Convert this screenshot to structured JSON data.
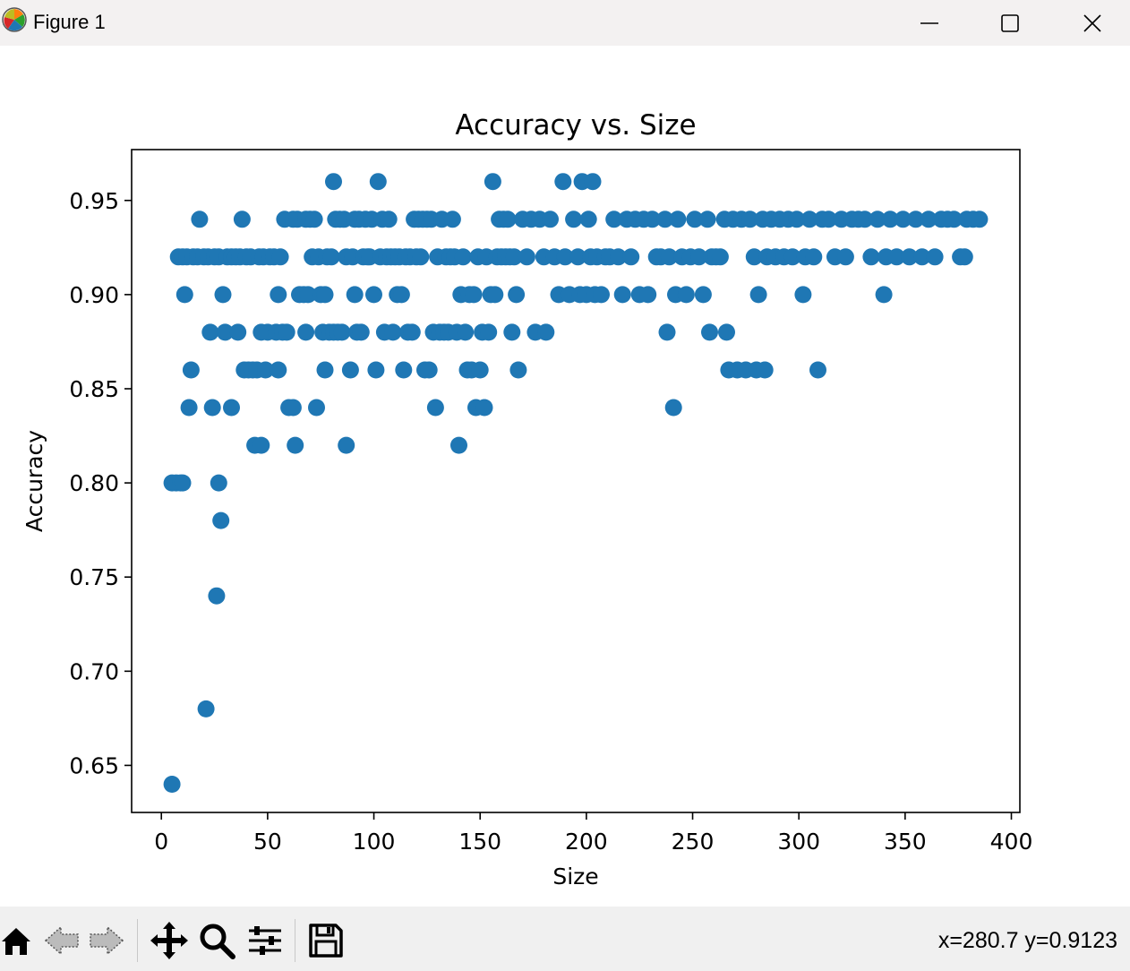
{
  "window": {
    "title": "Figure 1",
    "icon": "matplotlib-logo-icon",
    "controls": [
      "minimize-icon",
      "maximize-icon",
      "close-icon"
    ]
  },
  "toolbar": {
    "buttons": [
      "home-icon",
      "back-arrow-icon",
      "forward-arrow-icon",
      "pan-move-icon",
      "zoom-magnifier-icon",
      "configure-subplots-icon",
      "save-disk-icon"
    ],
    "coord_readout": "x=280.7 y=0.9123"
  },
  "chart_data": {
    "type": "scatter",
    "title": "Accuracy vs. Size",
    "xlabel": "Size",
    "ylabel": "Accuracy",
    "xlim": [
      -14,
      404
    ],
    "ylim": [
      0.625,
      0.977
    ],
    "xticks": [
      0,
      50,
      100,
      150,
      200,
      250,
      300,
      350,
      400
    ],
    "yticks": [
      0.65,
      0.7,
      0.75,
      0.8,
      0.85,
      0.9,
      0.95
    ],
    "ytick_labels": [
      "0.65",
      "0.70",
      "0.75",
      "0.80",
      "0.85",
      "0.90",
      "0.95"
    ],
    "grid": false,
    "marker_color": "#1f77b4",
    "points": [
      [
        5,
        0.64
      ],
      [
        5,
        0.8
      ],
      [
        7,
        0.8
      ],
      [
        9,
        0.8
      ],
      [
        10,
        0.8
      ],
      [
        8,
        0.92
      ],
      [
        10,
        0.92
      ],
      [
        12,
        0.92
      ],
      [
        11,
        0.9
      ],
      [
        13,
        0.84
      ],
      [
        14,
        0.86
      ],
      [
        15,
        0.92
      ],
      [
        17,
        0.92
      ],
      [
        18,
        0.94
      ],
      [
        20,
        0.92
      ],
      [
        21,
        0.68
      ],
      [
        22,
        0.92
      ],
      [
        23,
        0.88
      ],
      [
        24,
        0.84
      ],
      [
        25,
        0.92
      ],
      [
        26,
        0.74
      ],
      [
        27,
        0.8
      ],
      [
        28,
        0.78
      ],
      [
        27,
        0.92
      ],
      [
        29,
        0.9
      ],
      [
        30,
        0.88
      ],
      [
        31,
        0.92
      ],
      [
        33,
        0.84
      ],
      [
        33,
        0.92
      ],
      [
        35,
        0.92
      ],
      [
        36,
        0.88
      ],
      [
        37,
        0.92
      ],
      [
        38,
        0.94
      ],
      [
        39,
        0.86
      ],
      [
        40,
        0.92
      ],
      [
        41,
        0.86
      ],
      [
        42,
        0.92
      ],
      [
        43,
        0.86
      ],
      [
        44,
        0.82
      ],
      [
        45,
        0.86
      ],
      [
        46,
        0.92
      ],
      [
        47,
        0.82
      ],
      [
        47,
        0.88
      ],
      [
        48,
        0.92
      ],
      [
        49,
        0.86
      ],
      [
        50,
        0.88
      ],
      [
        51,
        0.92
      ],
      [
        53,
        0.92
      ],
      [
        54,
        0.88
      ],
      [
        55,
        0.9
      ],
      [
        55,
        0.86
      ],
      [
        56,
        0.92
      ],
      [
        57,
        0.88
      ],
      [
        58,
        0.94
      ],
      [
        59,
        0.88
      ],
      [
        60,
        0.84
      ],
      [
        62,
        0.84
      ],
      [
        62,
        0.94
      ],
      [
        63,
        0.82
      ],
      [
        64,
        0.94
      ],
      [
        65,
        0.9
      ],
      [
        67,
        0.9
      ],
      [
        68,
        0.88
      ],
      [
        68,
        0.94
      ],
      [
        69,
        0.9
      ],
      [
        70,
        0.94
      ],
      [
        71,
        0.92
      ],
      [
        72,
        0.94
      ],
      [
        73,
        0.84
      ],
      [
        74,
        0.92
      ],
      [
        75,
        0.9
      ],
      [
        76,
        0.88
      ],
      [
        77,
        0.86
      ],
      [
        77,
        0.9
      ],
      [
        78,
        0.92
      ],
      [
        79,
        0.88
      ],
      [
        80,
        0.92
      ],
      [
        81,
        0.96
      ],
      [
        81,
        0.88
      ],
      [
        82,
        0.94
      ],
      [
        83,
        0.88
      ],
      [
        84,
        0.94
      ],
      [
        85,
        0.88
      ],
      [
        86,
        0.94
      ],
      [
        87,
        0.82
      ],
      [
        87,
        0.92
      ],
      [
        89,
        0.86
      ],
      [
        90,
        0.92
      ],
      [
        91,
        0.94
      ],
      [
        91,
        0.9
      ],
      [
        92,
        0.88
      ],
      [
        93,
        0.94
      ],
      [
        94,
        0.88
      ],
      [
        95,
        0.92
      ],
      [
        96,
        0.94
      ],
      [
        97,
        0.92
      ],
      [
        98,
        0.92
      ],
      [
        99,
        0.94
      ],
      [
        100,
        0.9
      ],
      [
        101,
        0.86
      ],
      [
        102,
        0.96
      ],
      [
        103,
        0.92
      ],
      [
        104,
        0.94
      ],
      [
        105,
        0.88
      ],
      [
        106,
        0.92
      ],
      [
        107,
        0.94
      ],
      [
        108,
        0.92
      ],
      [
        109,
        0.88
      ],
      [
        110,
        0.92
      ],
      [
        111,
        0.9
      ],
      [
        112,
        0.92
      ],
      [
        113,
        0.9
      ],
      [
        114,
        0.86
      ],
      [
        115,
        0.92
      ],
      [
        116,
        0.88
      ],
      [
        117,
        0.92
      ],
      [
        118,
        0.88
      ],
      [
        119,
        0.94
      ],
      [
        120,
        0.92
      ],
      [
        121,
        0.94
      ],
      [
        122,
        0.92
      ],
      [
        123,
        0.94
      ],
      [
        124,
        0.86
      ],
      [
        125,
        0.94
      ],
      [
        126,
        0.86
      ],
      [
        127,
        0.94
      ],
      [
        128,
        0.88
      ],
      [
        129,
        0.84
      ],
      [
        130,
        0.92
      ],
      [
        131,
        0.88
      ],
      [
        132,
        0.94
      ],
      [
        133,
        0.88
      ],
      [
        134,
        0.92
      ],
      [
        135,
        0.88
      ],
      [
        136,
        0.92
      ],
      [
        137,
        0.94
      ],
      [
        138,
        0.92
      ],
      [
        139,
        0.88
      ],
      [
        140,
        0.82
      ],
      [
        141,
        0.9
      ],
      [
        142,
        0.92
      ],
      [
        143,
        0.88
      ],
      [
        144,
        0.86
      ],
      [
        145,
        0.9
      ],
      [
        146,
        0.86
      ],
      [
        147,
        0.9
      ],
      [
        148,
        0.84
      ],
      [
        149,
        0.92
      ],
      [
        150,
        0.86
      ],
      [
        151,
        0.88
      ],
      [
        152,
        0.84
      ],
      [
        153,
        0.92
      ],
      [
        154,
        0.88
      ],
      [
        155,
        0.9
      ],
      [
        156,
        0.96
      ],
      [
        157,
        0.9
      ],
      [
        158,
        0.92
      ],
      [
        159,
        0.94
      ],
      [
        160,
        0.92
      ],
      [
        161,
        0.94
      ],
      [
        162,
        0.92
      ],
      [
        163,
        0.94
      ],
      [
        164,
        0.92
      ],
      [
        165,
        0.88
      ],
      [
        166,
        0.92
      ],
      [
        167,
        0.9
      ],
      [
        168,
        0.86
      ],
      [
        170,
        0.94
      ],
      [
        172,
        0.92
      ],
      [
        174,
        0.94
      ],
      [
        176,
        0.88
      ],
      [
        178,
        0.94
      ],
      [
        180,
        0.92
      ],
      [
        181,
        0.88
      ],
      [
        183,
        0.94
      ],
      [
        185,
        0.92
      ],
      [
        187,
        0.9
      ],
      [
        189,
        0.96
      ],
      [
        190,
        0.92
      ],
      [
        192,
        0.9
      ],
      [
        194,
        0.94
      ],
      [
        196,
        0.92
      ],
      [
        197,
        0.9
      ],
      [
        198,
        0.96
      ],
      [
        200,
        0.9
      ],
      [
        201,
        0.94
      ],
      [
        202,
        0.92
      ],
      [
        203,
        0.96
      ],
      [
        204,
        0.9
      ],
      [
        205,
        0.92
      ],
      [
        207,
        0.9
      ],
      [
        209,
        0.92
      ],
      [
        211,
        0.92
      ],
      [
        213,
        0.94
      ],
      [
        215,
        0.92
      ],
      [
        217,
        0.9
      ],
      [
        219,
        0.94
      ],
      [
        221,
        0.92
      ],
      [
        223,
        0.94
      ],
      [
        225,
        0.9
      ],
      [
        227,
        0.94
      ],
      [
        229,
        0.9
      ],
      [
        231,
        0.94
      ],
      [
        233,
        0.92
      ],
      [
        235,
        0.92
      ],
      [
        237,
        0.94
      ],
      [
        238,
        0.88
      ],
      [
        239,
        0.92
      ],
      [
        241,
        0.84
      ],
      [
        242,
        0.9
      ],
      [
        243,
        0.94
      ],
      [
        245,
        0.92
      ],
      [
        247,
        0.9
      ],
      [
        249,
        0.92
      ],
      [
        251,
        0.94
      ],
      [
        253,
        0.92
      ],
      [
        255,
        0.9
      ],
      [
        257,
        0.94
      ],
      [
        258,
        0.88
      ],
      [
        259,
        0.92
      ],
      [
        261,
        0.92
      ],
      [
        263,
        0.92
      ],
      [
        265,
        0.94
      ],
      [
        266,
        0.88
      ],
      [
        267,
        0.86
      ],
      [
        269,
        0.94
      ],
      [
        271,
        0.86
      ],
      [
        273,
        0.94
      ],
      [
        275,
        0.86
      ],
      [
        277,
        0.94
      ],
      [
        279,
        0.92
      ],
      [
        280,
        0.86
      ],
      [
        281,
        0.9
      ],
      [
        283,
        0.94
      ],
      [
        284,
        0.86
      ],
      [
        285,
        0.92
      ],
      [
        287,
        0.94
      ],
      [
        289,
        0.92
      ],
      [
        291,
        0.94
      ],
      [
        293,
        0.92
      ],
      [
        295,
        0.94
      ],
      [
        297,
        0.92
      ],
      [
        299,
        0.94
      ],
      [
        302,
        0.9
      ],
      [
        303,
        0.92
      ],
      [
        305,
        0.94
      ],
      [
        307,
        0.92
      ],
      [
        309,
        0.86
      ],
      [
        311,
        0.94
      ],
      [
        314,
        0.94
      ],
      [
        317,
        0.92
      ],
      [
        320,
        0.94
      ],
      [
        322,
        0.92
      ],
      [
        325,
        0.94
      ],
      [
        328,
        0.94
      ],
      [
        331,
        0.94
      ],
      [
        334,
        0.92
      ],
      [
        337,
        0.94
      ],
      [
        340,
        0.9
      ],
      [
        341,
        0.92
      ],
      [
        343,
        0.94
      ],
      [
        346,
        0.92
      ],
      [
        349,
        0.94
      ],
      [
        352,
        0.92
      ],
      [
        355,
        0.94
      ],
      [
        358,
        0.92
      ],
      [
        361,
        0.94
      ],
      [
        364,
        0.92
      ],
      [
        367,
        0.94
      ],
      [
        370,
        0.94
      ],
      [
        373,
        0.94
      ],
      [
        376,
        0.92
      ],
      [
        378,
        0.92
      ],
      [
        379,
        0.94
      ],
      [
        382,
        0.94
      ],
      [
        385,
        0.94
      ]
    ]
  }
}
